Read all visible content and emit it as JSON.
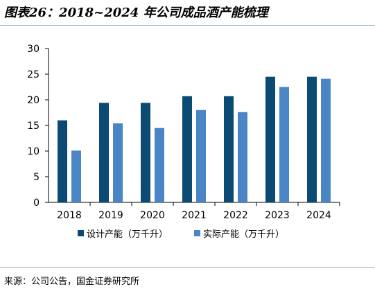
{
  "title": "图表26：2018~2024 年公司成品酒产能梳理",
  "source": "来源：公司公告，国金证券研究所",
  "chart_data": {
    "type": "bar",
    "categories": [
      "2018",
      "2019",
      "2020",
      "2021",
      "2022",
      "2023",
      "2024"
    ],
    "series": [
      {
        "name": "设计产能（万千升）",
        "color": "#0b4a72",
        "values": [
          16,
          19.4,
          19.4,
          20.7,
          20.7,
          24.5,
          24.5
        ]
      },
      {
        "name": "实际产能（万千升）",
        "color": "#4a86c5",
        "values": [
          10.1,
          15.4,
          14.5,
          18,
          17.6,
          22.5,
          24.1
        ]
      }
    ],
    "ylim": [
      0,
      30
    ],
    "yticks": [
      0,
      5,
      10,
      15,
      20,
      25,
      30
    ],
    "legend_position": "bottom"
  }
}
